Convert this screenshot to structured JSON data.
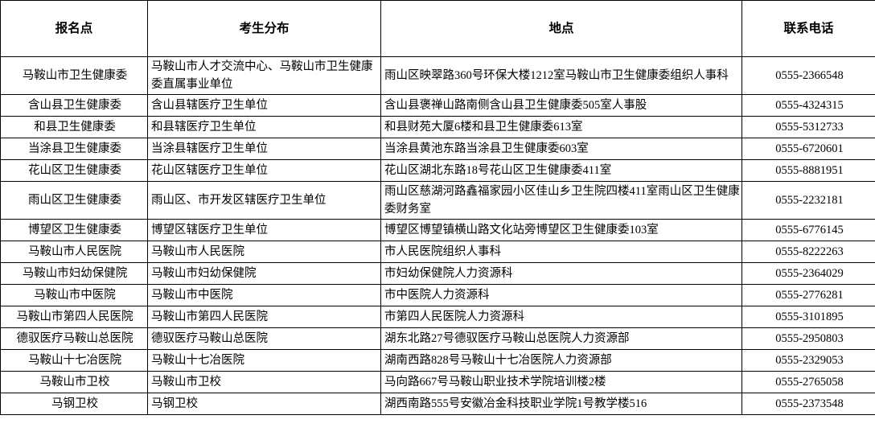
{
  "table": {
    "headers": [
      "报名点",
      "考生分布",
      "地点",
      "联系电话"
    ],
    "rows": [
      {
        "site": "马鞍山市卫生健康委",
        "distribution": "马鞍山市人才交流中心、马鞍山市卫生健康委直属事业单位",
        "address": "雨山区映翠路360号环保大楼1212室马鞍山市卫生健康委组织人事科",
        "phone": "0555-2366548"
      },
      {
        "site": "含山县卫生健康委",
        "distribution": "含山县辖医疗卫生单位",
        "address": "含山县褒禅山路南侧含山县卫生健康委505室人事股",
        "phone": "0555-4324315"
      },
      {
        "site": "和县卫生健康委",
        "distribution": "和县辖医疗卫生单位",
        "address": "和县财苑大厦6楼和县卫生健康委613室",
        "phone": "0555-5312733"
      },
      {
        "site": "当涂县卫生健康委",
        "distribution": "当涂县辖医疗卫生单位",
        "address": "当涂县黄池东路当涂县卫生健康委603室",
        "phone": "0555-6720601"
      },
      {
        "site": "花山区卫生健康委",
        "distribution": "花山区辖医疗卫生单位",
        "address": "花山区湖北东路18号花山区卫生健康委411室",
        "phone": "0555-8881951"
      },
      {
        "site": "雨山区卫生健康委",
        "distribution": "雨山区、市开发区辖医疗卫生单位",
        "address": "雨山区慈湖河路鑫福家园小区佳山乡卫生院四楼411室雨山区卫生健康委财务室",
        "phone": "0555-2232181"
      },
      {
        "site": "博望区卫生健康委",
        "distribution": "博望区辖医疗卫生单位",
        "address": "博望区博望镇横山路文化站旁博望区卫生健康委103室",
        "phone": "0555-6776145"
      },
      {
        "site": "马鞍山市人民医院",
        "distribution": "马鞍山市人民医院",
        "address": "市人民医院组织人事科",
        "phone": "0555-8222263"
      },
      {
        "site": "马鞍山市妇幼保健院",
        "distribution": "马鞍山市妇幼保健院",
        "address": "市妇幼保健院人力资源科",
        "phone": "0555-2364029"
      },
      {
        "site": "马鞍山市中医院",
        "distribution": "马鞍山市中医院",
        "address": "市中医院人力资源科",
        "phone": "0555-2776281"
      },
      {
        "site": "马鞍山市第四人民医院",
        "distribution": "马鞍山市第四人民医院",
        "address": "市第四人民医院人力资源科",
        "phone": "0555-3101895"
      },
      {
        "site": "德驭医疗马鞍山总医院",
        "distribution": "德驭医疗马鞍山总医院",
        "address": "湖东北路27号德驭医疗马鞍山总医院人力资源部",
        "phone": "0555-2950803"
      },
      {
        "site": "马鞍山十七冶医院",
        "distribution": "马鞍山十七冶医院",
        "address": "湖南西路828号马鞍山十七冶医院人力资源部",
        "phone": "0555-2329053"
      },
      {
        "site": "马鞍山市卫校",
        "distribution": "马鞍山市卫校",
        "address": "马向路667号马鞍山职业技术学院培训楼2楼",
        "phone": "0555-2765058"
      },
      {
        "site": "马钢卫校",
        "distribution": "马钢卫校",
        "address": "湖西南路555号安徽冶金科技职业学院1号教学楼516",
        "phone": "0555-2373548"
      }
    ]
  }
}
